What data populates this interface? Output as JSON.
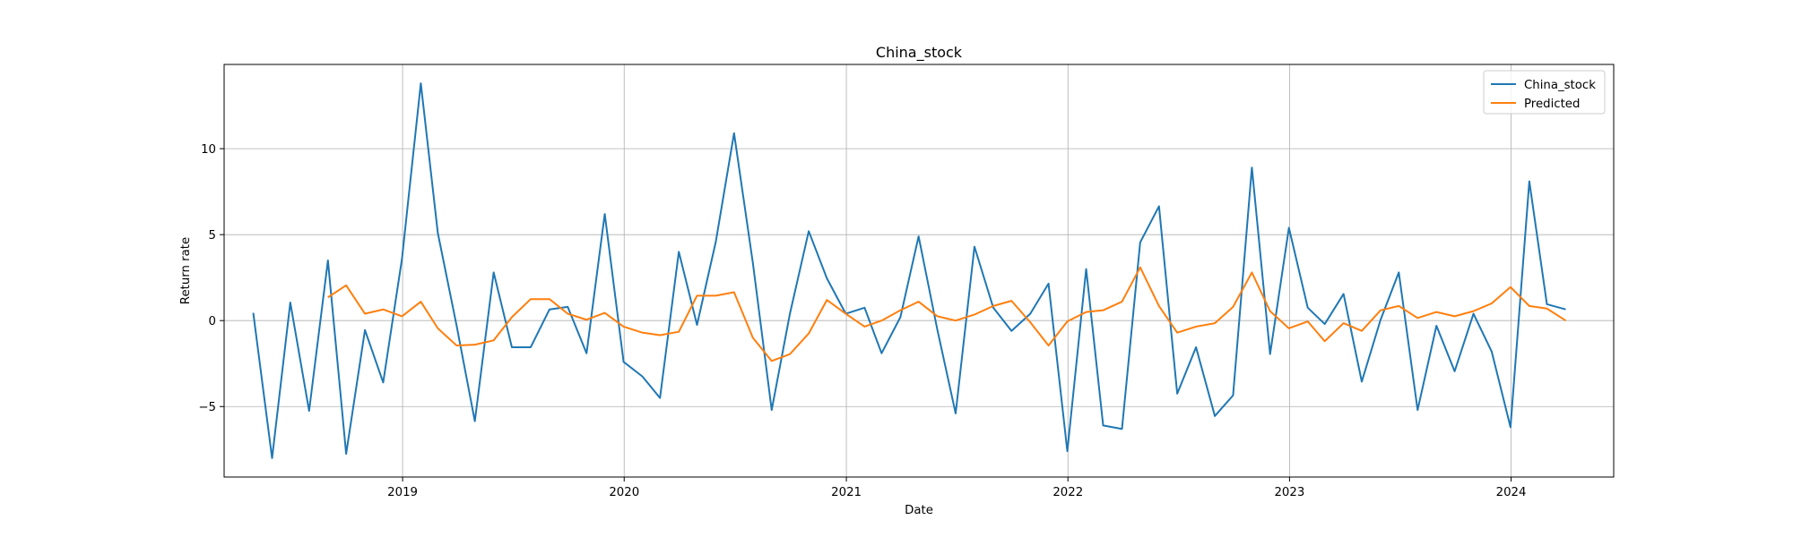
{
  "chart_data": {
    "type": "line",
    "title": "China_stock",
    "xlabel": "Date",
    "ylabel": "Return rate",
    "xlim": [
      "2018-03-13",
      "2024-06-18"
    ],
    "ylim": [
      -9.1,
      14.9
    ],
    "grid": true,
    "legend": "top-right",
    "x_ticks": [
      "2019-01-01",
      "2020-01-01",
      "2021-01-01",
      "2022-01-01",
      "2023-01-01",
      "2024-01-01"
    ],
    "x_tick_labels": [
      "2019",
      "2020",
      "2021",
      "2022",
      "2023",
      "2024"
    ],
    "y_ticks": [
      -5,
      0,
      5,
      10
    ],
    "y_tick_labels": [
      "−5",
      "0",
      "5",
      "10"
    ],
    "colors": {
      "China_stock": "#1f77b4",
      "Predicted": "#ff7f0e"
    },
    "series": [
      {
        "name": "China_stock",
        "x": [
          "2018-04-30",
          "2018-05-31",
          "2018-06-30",
          "2018-07-31",
          "2018-08-31",
          "2018-09-30",
          "2018-10-31",
          "2018-11-30",
          "2018-12-31",
          "2019-01-31",
          "2019-02-28",
          "2019-03-31",
          "2019-04-30",
          "2019-05-31",
          "2019-06-30",
          "2019-07-31",
          "2019-08-31",
          "2019-09-30",
          "2019-10-31",
          "2019-11-30",
          "2019-12-31",
          "2020-01-31",
          "2020-02-29",
          "2020-03-31",
          "2020-04-30",
          "2020-05-31",
          "2020-06-30",
          "2020-07-31",
          "2020-08-31",
          "2020-09-30",
          "2020-10-31",
          "2020-11-30",
          "2020-12-31",
          "2021-01-31",
          "2021-02-28",
          "2021-03-31",
          "2021-04-30",
          "2021-05-31",
          "2021-06-30",
          "2021-07-31",
          "2021-08-31",
          "2021-09-30",
          "2021-10-31",
          "2021-11-30",
          "2021-12-31",
          "2022-01-31",
          "2022-02-28",
          "2022-03-31",
          "2022-04-30",
          "2022-05-31",
          "2022-06-30",
          "2022-07-31",
          "2022-08-31",
          "2022-09-30",
          "2022-10-31",
          "2022-11-30",
          "2022-12-31",
          "2023-01-31",
          "2023-02-28",
          "2023-03-31",
          "2023-04-30",
          "2023-05-31",
          "2023-06-30",
          "2023-07-31",
          "2023-08-31",
          "2023-09-30",
          "2023-10-31",
          "2023-11-30",
          "2023-12-31",
          "2024-01-31",
          "2024-02-29",
          "2024-03-31"
        ],
        "values": [
          0.45,
          -8.0,
          1.05,
          -5.25,
          3.5,
          -7.75,
          -0.55,
          -3.6,
          3.6,
          13.8,
          5.1,
          -0.3,
          -5.85,
          2.8,
          -1.55,
          -1.55,
          0.65,
          0.8,
          -1.9,
          6.2,
          -2.4,
          -3.25,
          -4.5,
          4.0,
          -0.25,
          4.6,
          10.9,
          3.35,
          -5.2,
          0.4,
          5.2,
          2.45,
          0.4,
          0.75,
          -1.9,
          0.2,
          4.9,
          -0.55,
          -5.4,
          4.3,
          0.75,
          -0.6,
          0.4,
          2.15,
          -7.6,
          3.0,
          -6.1,
          -6.3,
          4.55,
          6.65,
          -4.25,
          -1.55,
          -5.55,
          -4.35,
          8.9,
          -1.95,
          5.4,
          0.75,
          -0.2,
          1.55,
          -3.55,
          0.05,
          2.8,
          -5.2,
          -0.3,
          -2.95,
          0.4,
          -1.8,
          -6.2,
          8.1,
          0.95,
          0.65
        ]
      },
      {
        "name": "Predicted",
        "x": [
          "2018-08-31",
          "2018-09-30",
          "2018-10-31",
          "2018-11-30",
          "2018-12-31",
          "2019-01-31",
          "2019-02-28",
          "2019-03-31",
          "2019-04-30",
          "2019-05-31",
          "2019-06-30",
          "2019-07-31",
          "2019-08-31",
          "2019-09-30",
          "2019-10-31",
          "2019-11-30",
          "2019-12-31",
          "2020-01-31",
          "2020-02-29",
          "2020-03-31",
          "2020-04-30",
          "2020-05-31",
          "2020-06-30",
          "2020-07-31",
          "2020-08-31",
          "2020-09-30",
          "2020-10-31",
          "2020-11-30",
          "2020-12-31",
          "2021-01-31",
          "2021-02-28",
          "2021-03-31",
          "2021-04-30",
          "2021-05-31",
          "2021-06-30",
          "2021-07-31",
          "2021-08-31",
          "2021-09-30",
          "2021-10-31",
          "2021-11-30",
          "2021-12-31",
          "2022-01-31",
          "2022-02-28",
          "2022-03-31",
          "2022-04-30",
          "2022-05-31",
          "2022-06-30",
          "2022-07-31",
          "2022-08-31",
          "2022-09-30",
          "2022-10-31",
          "2022-11-30",
          "2022-12-31",
          "2023-01-31",
          "2023-02-28",
          "2023-03-31",
          "2023-04-30",
          "2023-05-31",
          "2023-06-30",
          "2023-07-31",
          "2023-08-31",
          "2023-09-30",
          "2023-10-31",
          "2023-11-30",
          "2023-12-31",
          "2024-01-31",
          "2024-02-29",
          "2024-03-31"
        ],
        "values": [
          1.35,
          2.05,
          0.4,
          0.65,
          0.25,
          1.1,
          -0.45,
          -1.45,
          -1.4,
          -1.15,
          0.2,
          1.25,
          1.25,
          0.4,
          0.05,
          0.45,
          -0.35,
          -0.7,
          -0.85,
          -0.65,
          1.45,
          1.45,
          1.65,
          -1.0,
          -2.35,
          -1.95,
          -0.75,
          1.2,
          0.4,
          -0.35,
          0.0,
          0.6,
          1.1,
          0.25,
          0.0,
          0.35,
          0.85,
          1.15,
          -0.1,
          -1.45,
          -0.05,
          0.5,
          0.6,
          1.1,
          3.1,
          0.85,
          -0.7,
          -0.35,
          -0.15,
          0.8,
          2.8,
          0.55,
          -0.45,
          -0.05,
          -1.2,
          -0.15,
          -0.6,
          0.6,
          0.85,
          0.15,
          0.5,
          0.25,
          0.55,
          1.0,
          1.95,
          0.85,
          0.7,
          0.0
        ]
      }
    ]
  }
}
